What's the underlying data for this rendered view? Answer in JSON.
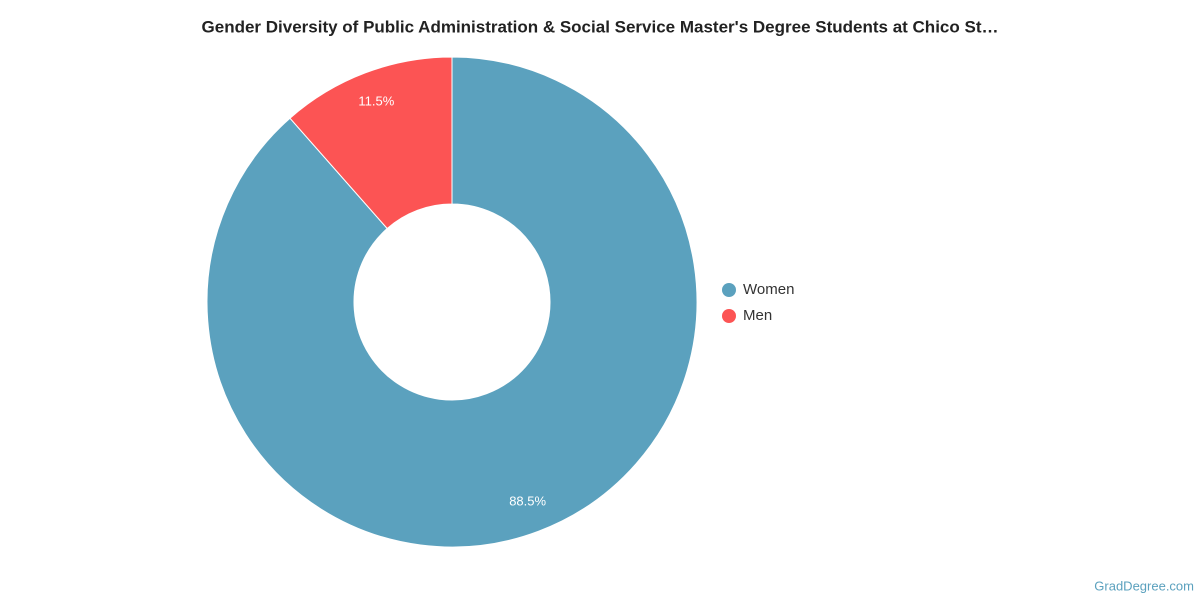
{
  "chart_data": {
    "type": "donut",
    "title": "Gender Diversity of Public Administration & Social Service Master's Degree Students at Chico St…",
    "categories": [
      "Women",
      "Men"
    ],
    "values": [
      88.5,
      11.5
    ],
    "value_labels": [
      "88.5%",
      "11.5%"
    ],
    "colors": [
      "#5ba1be",
      "#fc5454"
    ],
    "legend": "right",
    "source": "GradDegree.com"
  }
}
